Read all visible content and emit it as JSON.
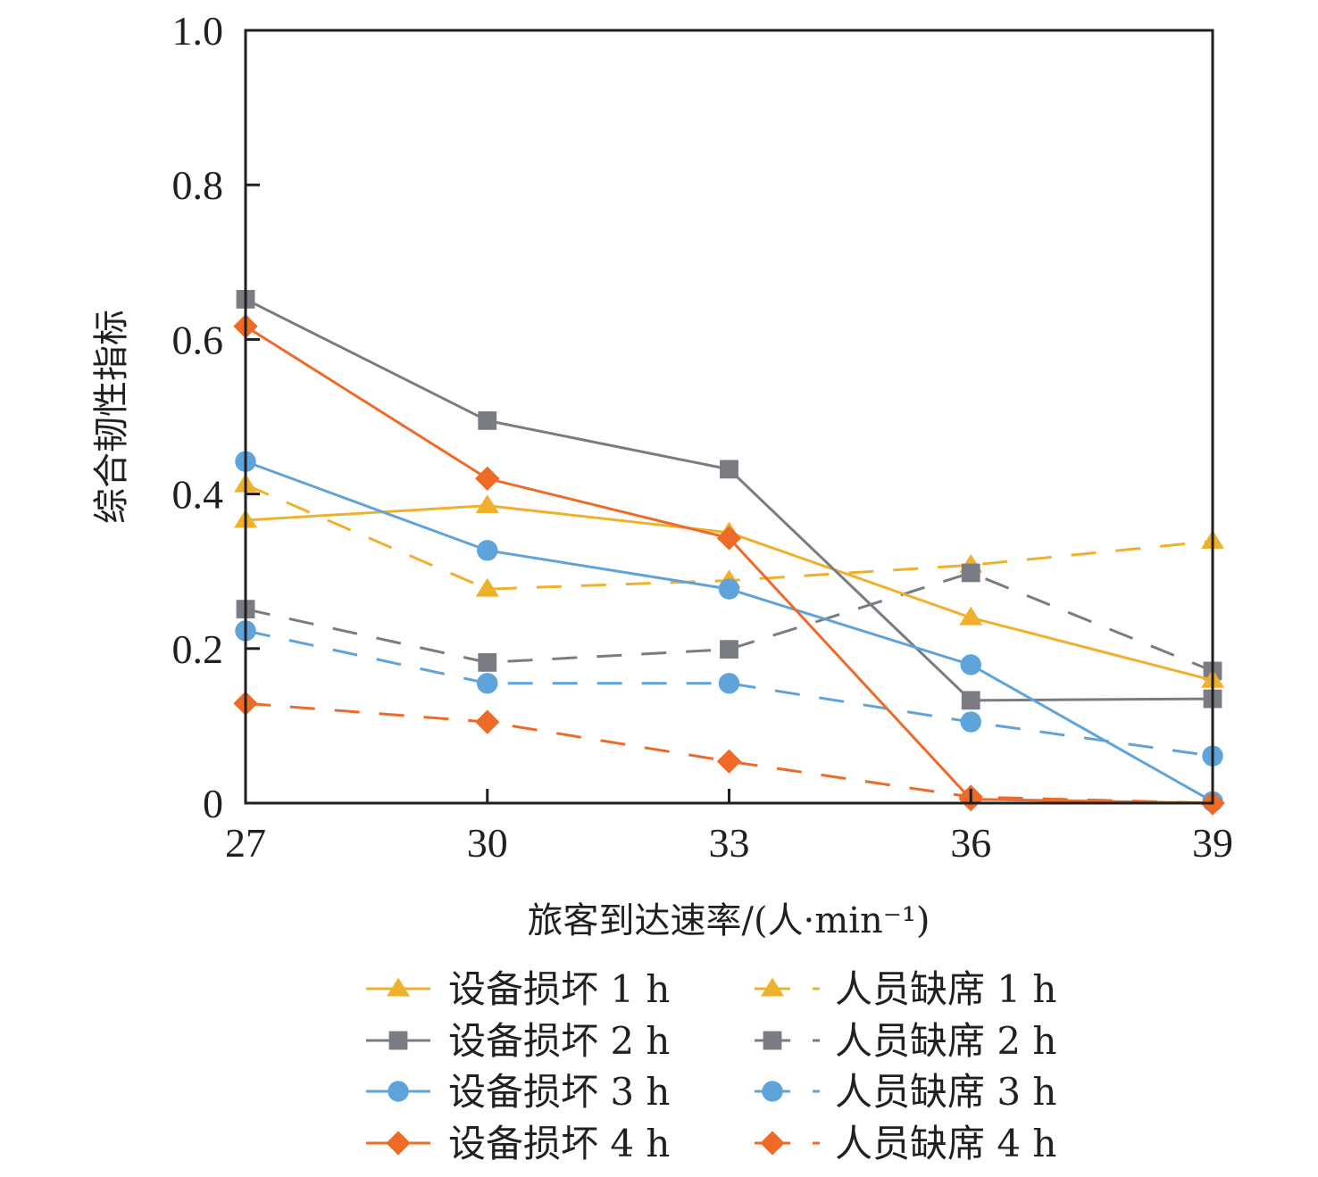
{
  "chart_data": {
    "type": "line",
    "title": "",
    "xlabel": "旅客到达速率/(人·min⁻¹)",
    "ylabel": "综合韧性指标",
    "x": [
      27,
      30,
      33,
      36,
      39
    ],
    "xlim": [
      27,
      39
    ],
    "ylim": [
      0,
      1.0
    ],
    "xticks": [
      "27",
      "30",
      "33",
      "36",
      "39"
    ],
    "yticks": [
      "0",
      "0.2",
      "0.4",
      "0.6",
      "0.8",
      "1.0"
    ],
    "ytick_values": [
      0,
      0.2,
      0.4,
      0.6,
      0.8,
      1.0
    ],
    "grid": false,
    "legend_position": "bottom",
    "series": [
      {
        "name": "设备损坏 1 h",
        "color": "#EFB12B",
        "marker": "triangle",
        "dashed": false,
        "values": [
          0.366,
          0.385,
          0.35,
          0.24,
          0.159
        ]
      },
      {
        "name": "设备损坏 2 h",
        "color": "#7A7C83",
        "marker": "square",
        "dashed": false,
        "values": [
          0.652,
          0.495,
          0.432,
          0.133,
          0.135
        ]
      },
      {
        "name": "设备损坏 3 h",
        "color": "#5EA3D9",
        "marker": "circle",
        "dashed": false,
        "values": [
          0.442,
          0.327,
          0.277,
          0.179,
          0.002
        ]
      },
      {
        "name": "设备损坏 4 h",
        "color": "#EE6A27",
        "marker": "diamond",
        "dashed": false,
        "values": [
          0.617,
          0.42,
          0.343,
          0.005,
          0.0
        ]
      },
      {
        "name": "人员缺席 1 h",
        "color": "#EFB12B",
        "marker": "triangle",
        "dashed": true,
        "values": [
          0.412,
          0.277,
          0.288,
          0.308,
          0.339
        ]
      },
      {
        "name": "人员缺席 2 h",
        "color": "#7A7C83",
        "marker": "square",
        "dashed": true,
        "values": [
          0.251,
          0.182,
          0.199,
          0.298,
          0.171
        ]
      },
      {
        "name": "人员缺席 3 h",
        "color": "#5EA3D9",
        "marker": "circle",
        "dashed": true,
        "values": [
          0.223,
          0.155,
          0.155,
          0.105,
          0.061
        ]
      },
      {
        "name": "人员缺席 4 h",
        "color": "#EE6A27",
        "marker": "diamond",
        "dashed": true,
        "values": [
          0.129,
          0.105,
          0.054,
          0.008,
          0.0
        ]
      }
    ]
  }
}
